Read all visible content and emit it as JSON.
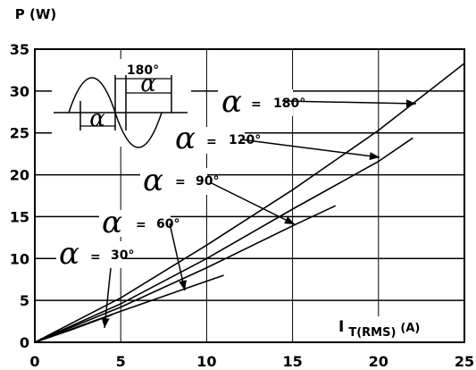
{
  "chart_data": {
    "type": "line",
    "ylabel": "P (W)",
    "xlabel_main": "I",
    "xlabel_sub": "T(RMS)",
    "xlabel_unit": "(A)",
    "xlim": [
      0,
      25
    ],
    "ylim": [
      0,
      35
    ],
    "x_ticks": [
      "0",
      "5",
      "10",
      "15",
      "20",
      "25"
    ],
    "y_ticks": [
      "0",
      "5",
      "10",
      "15",
      "20",
      "25",
      "30",
      "35"
    ],
    "grid": true,
    "series": [
      {
        "name": "α = 180°",
        "alpha_symbol": "α",
        "eq": "=",
        "angle": "180°",
        "x": [
          0,
          5,
          10,
          15,
          20,
          25
        ],
        "y": [
          0,
          5.3,
          11.6,
          18.2,
          25.3,
          33.3
        ]
      },
      {
        "name": "α = 120°",
        "alpha_symbol": "α",
        "eq": "=",
        "angle": "120°",
        "x": [
          0,
          5,
          10,
          15,
          20,
          22
        ],
        "y": [
          0,
          4.6,
          10.0,
          15.9,
          21.6,
          24.4
        ]
      },
      {
        "name": "α = 90°",
        "alpha_symbol": "α",
        "eq": "=",
        "angle": "90°",
        "x": [
          0,
          5,
          10,
          15,
          17.5
        ],
        "y": [
          0,
          4.2,
          8.9,
          13.9,
          16.3
        ]
      },
      {
        "name": "α = 60°",
        "alpha_symbol": "α",
        "eq": "=",
        "angle": "60°",
        "x": [
          0,
          5,
          10,
          11
        ],
        "y": [
          0,
          3.7,
          7.3,
          8.0
        ]
      },
      {
        "name": "α = 30°",
        "alpha_symbol": "α",
        "eq": "=",
        "angle": "30°",
        "x": [
          0,
          2,
          4.5
        ],
        "y": [
          0,
          1.4,
          3.3
        ]
      }
    ],
    "inset": {
      "label_180": "180°",
      "label_alpha_top": "α",
      "label_alpha_bottom": "α"
    }
  }
}
